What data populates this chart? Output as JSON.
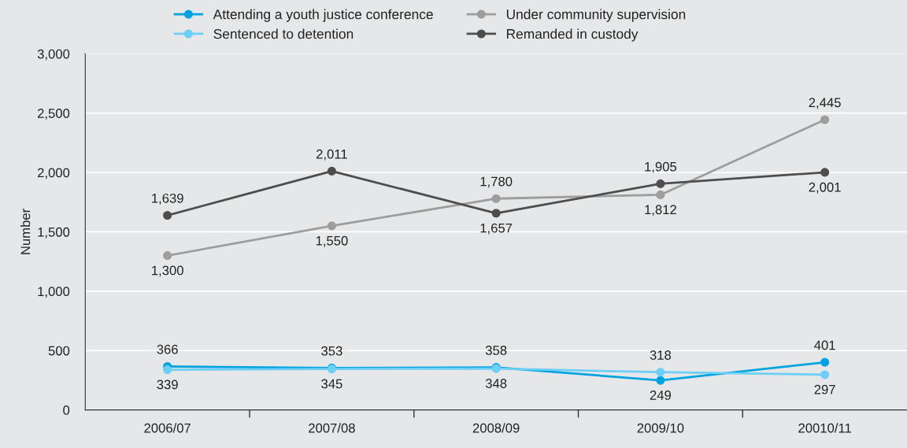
{
  "chart_data": {
    "type": "line",
    "ylabel": "Number",
    "categories": [
      "2006/07",
      "2007/08",
      "2008/09",
      "2009/10",
      "20010/11"
    ],
    "series": [
      {
        "name": "Attending a youth justice conference",
        "color": "#00a3e0",
        "values": [
          366,
          353,
          358,
          249,
          401
        ],
        "value_labels": [
          "366",
          "353",
          "358",
          "249",
          "401"
        ]
      },
      {
        "name": "Sentenced to detention",
        "color": "#6dcff6",
        "values": [
          339,
          345,
          348,
          318,
          297
        ],
        "value_labels": [
          "339",
          "345",
          "348",
          "318",
          "297"
        ]
      },
      {
        "name": "Under community supervision",
        "color": "#9d9d9d",
        "values": [
          1300,
          1550,
          1780,
          1812,
          2445
        ],
        "value_labels": [
          "1,300",
          "1,550",
          "1,780",
          "1,812",
          "2,445"
        ]
      },
      {
        "name": "Remanded in custody",
        "color": "#4d4d4d",
        "values": [
          1639,
          2011,
          1657,
          1905,
          2001
        ],
        "value_labels": [
          "1,639",
          "2,011",
          "1,657",
          "1,905",
          "2,001"
        ]
      }
    ],
    "ylim": [
      0,
      3000
    ],
    "yticks": [
      0,
      500,
      {
        "value": 1000,
        "label": "1,000"
      },
      {
        "value": 1500,
        "label": "1,500"
      },
      {
        "value": 2000,
        "label": "2,000"
      },
      {
        "value": 2500,
        "label": "2,500"
      },
      {
        "value": 3000,
        "label": "3,000"
      }
    ],
    "grid": "y",
    "legend": "top",
    "marker": "circle",
    "line_style": "solid"
  }
}
